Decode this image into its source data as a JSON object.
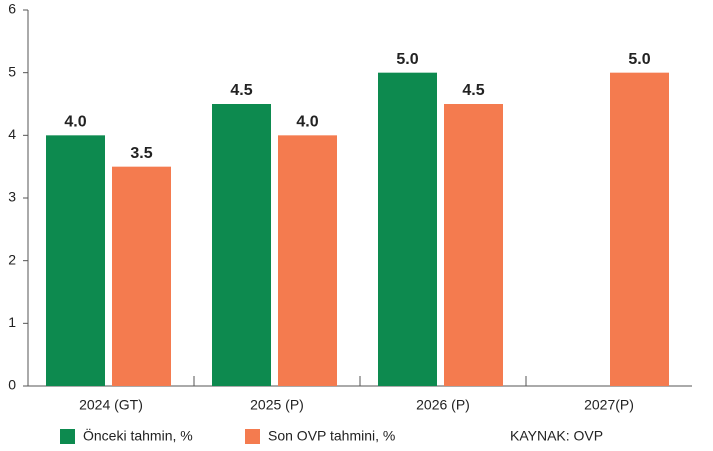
{
  "chart_data": {
    "type": "bar",
    "categories": [
      "2024 (GT)",
      "2025 (P)",
      "2026 (P)",
      "2027(P)"
    ],
    "series": [
      {
        "name": "Önceki tahmin, %",
        "color": "#0d8a4f",
        "values": [
          4.0,
          4.5,
          5.0,
          null
        ],
        "value_labels": [
          "4.0",
          "4.5",
          "5.0",
          null
        ]
      },
      {
        "name": "Son OVP tahmini, %",
        "color": "#f47b4f",
        "values": [
          3.5,
          4.0,
          4.5,
          5.0
        ],
        "value_labels": [
          "3.5",
          "4.0",
          "4.5",
          "5.0"
        ]
      }
    ],
    "ylim": [
      0,
      6
    ],
    "yticks": [
      0,
      1,
      2,
      3,
      4,
      5,
      6
    ],
    "source": "KAYNAK: OVP"
  }
}
